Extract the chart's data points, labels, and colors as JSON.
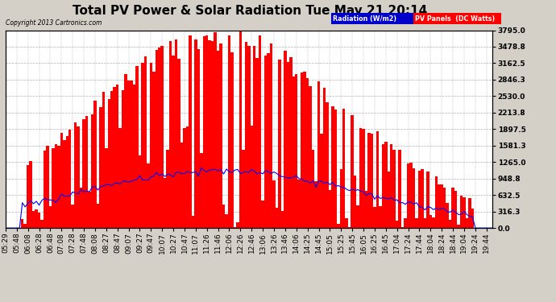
{
  "title": "Total PV Power & Solar Radiation Tue May 21 20:14",
  "copyright": "Copyright 2013 Cartronics.com",
  "legend_radiation": "Radiation (W/m2)",
  "legend_pv": "PV Panels  (DC Watts)",
  "ylabel_max": 3795.0,
  "ytick_values": [
    0.0,
    316.3,
    632.5,
    948.8,
    1265.0,
    1581.3,
    1897.5,
    2213.8,
    2530.0,
    2846.3,
    3162.5,
    3478.8,
    3795.0
  ],
  "background_color": "#d4d0c8",
  "plot_bg_color": "#ffffff",
  "pv_color": "#ff0000",
  "radiation_color": "#0000ff",
  "grid_color": "#b0b0b0",
  "title_fontsize": 11,
  "tick_fontsize": 6.5,
  "n_points": 175
}
